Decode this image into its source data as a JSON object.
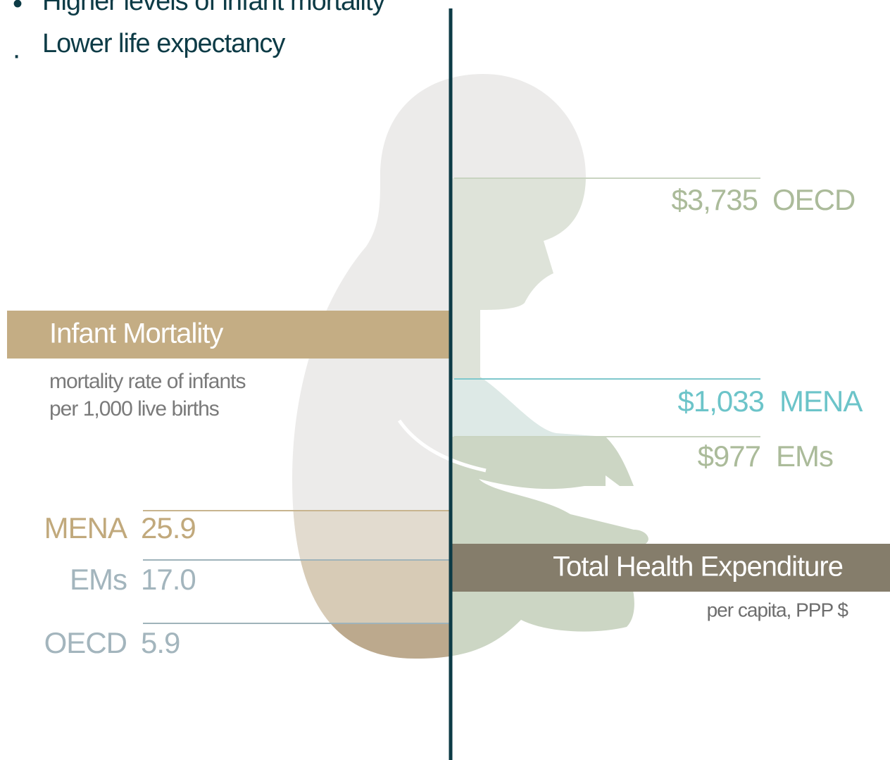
{
  "bullets": [
    "Higher levels of infant mortality",
    "Lower life expectancy"
  ],
  "left_panel": {
    "title": "Infant Mortality",
    "subtitle_lines": [
      "mortality rate of infants",
      "per 1,000 live births"
    ],
    "rows": [
      {
        "label": "MENA",
        "value": "25.9"
      },
      {
        "label": "EMs",
        "value": "17.0"
      },
      {
        "label": "OECD",
        "value": "5.9"
      }
    ]
  },
  "right_panel": {
    "title": "Total Health Expenditure",
    "subtitle": "per capita, PPP $",
    "rows": [
      {
        "value": "$3,735",
        "label": "OECD"
      },
      {
        "value": "$1,033",
        "label": "MENA"
      },
      {
        "value": "$977",
        "label": "EMs"
      }
    ]
  }
}
